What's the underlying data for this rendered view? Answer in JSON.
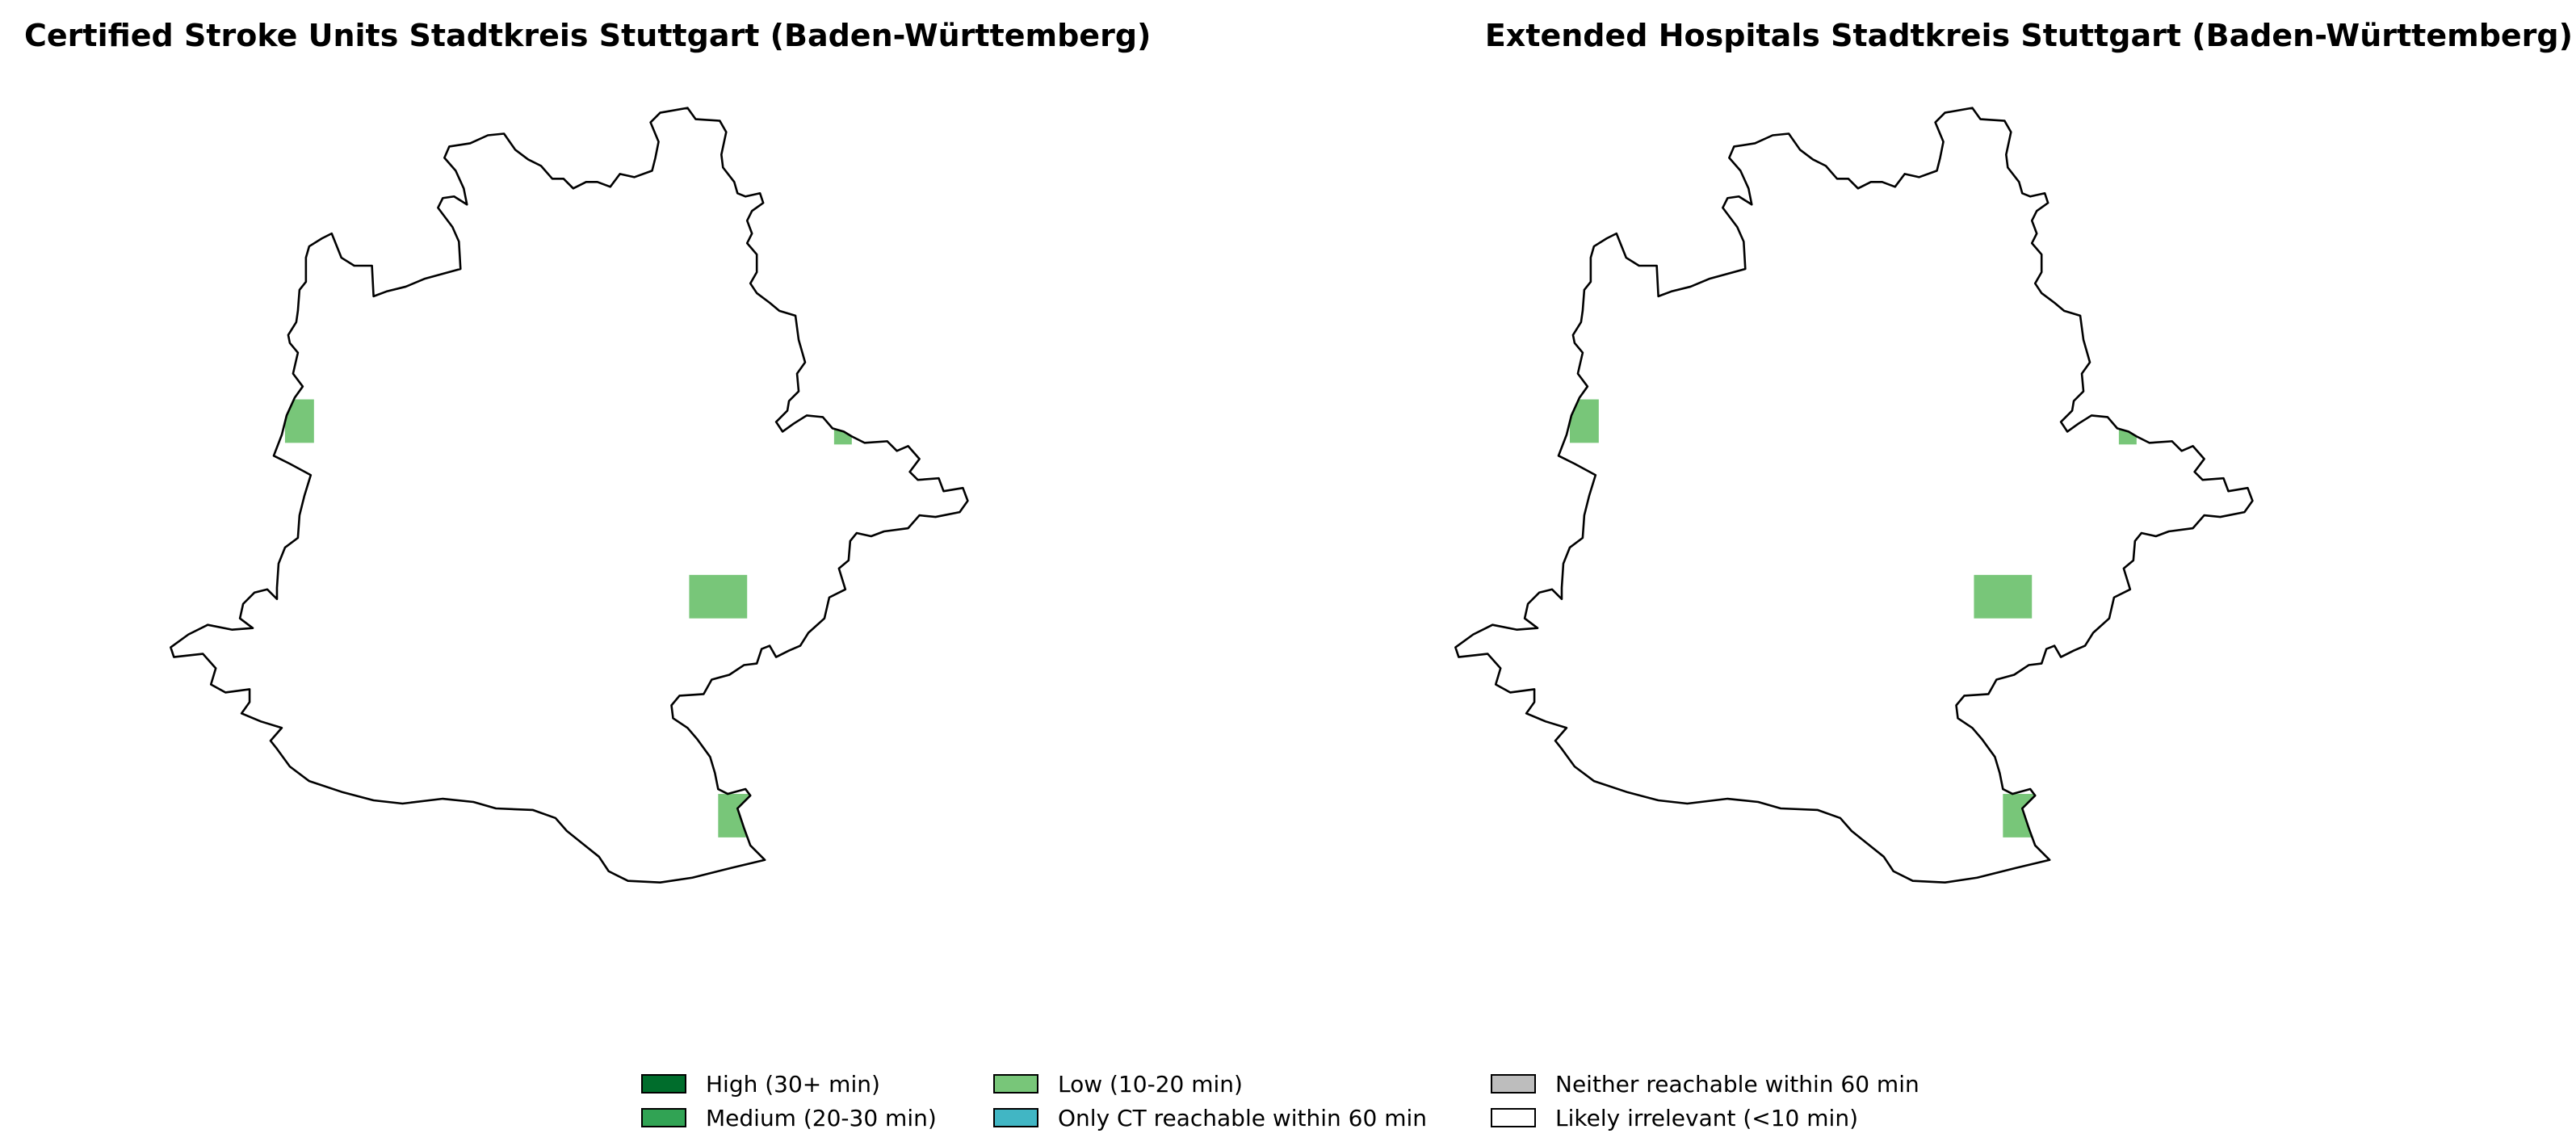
{
  "chart_data": [
    {
      "type": "choropleth-map",
      "title": "Certified Stroke Units Stadtkreis Stuttgart (Baden-Württemberg)",
      "region": "Stadtkreis Stuttgart",
      "cells": [
        {
          "id": "west",
          "category": "low"
        },
        {
          "id": "northeast",
          "category": "low"
        },
        {
          "id": "center-east",
          "category": "low"
        },
        {
          "id": "south",
          "category": "low"
        }
      ]
    },
    {
      "type": "choropleth-map",
      "title": "Extended Hospitals Stadtkreis Stuttgart (Baden-Württemberg)",
      "region": "Stadtkreis Stuttgart",
      "cells": [
        {
          "id": "west",
          "category": "low"
        },
        {
          "id": "northeast",
          "category": "low"
        },
        {
          "id": "center-east",
          "category": "low"
        },
        {
          "id": "south",
          "category": "low"
        }
      ]
    }
  ],
  "legend": {
    "entries": [
      {
        "key": "high",
        "label": "High (30+ min)",
        "color": "#006d2c"
      },
      {
        "key": "medium",
        "label": "Medium (20-30 min)",
        "color": "#31a354"
      },
      {
        "key": "low",
        "label": "Low (10-20 min)",
        "color": "#78c679"
      },
      {
        "key": "ct",
        "label": "Only CT reachable within 60 min",
        "color": "#41b6c4"
      },
      {
        "key": "neither",
        "label": "Neither reachable within 60 min",
        "color": "#bdbdbd"
      },
      {
        "key": "irrelevant",
        "label": "Likely irrelevant (<10 min)",
        "color": "#ffffff"
      }
    ]
  }
}
